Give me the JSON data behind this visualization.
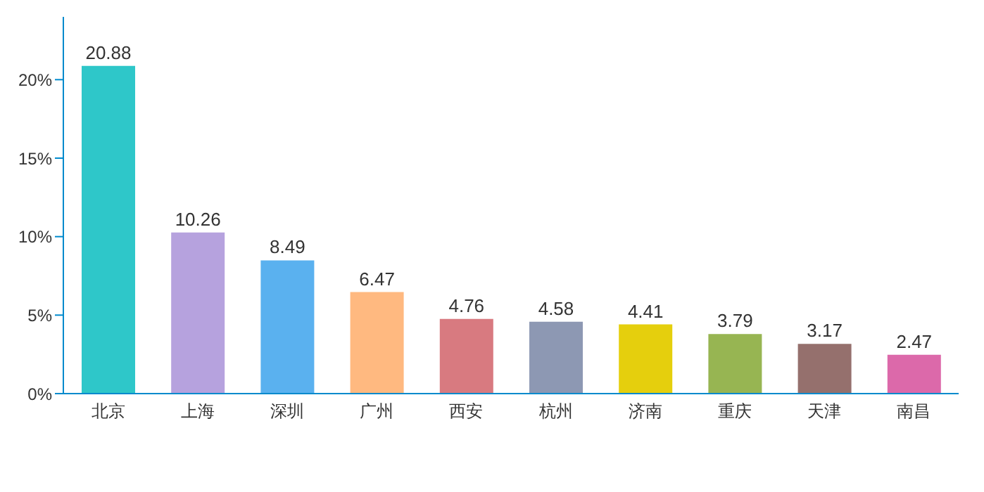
{
  "chart_data": {
    "type": "bar",
    "categories": [
      "北京",
      "上海",
      "深圳",
      "广州",
      "西安",
      "杭州",
      "济南",
      "重庆",
      "天津",
      "南昌"
    ],
    "values": [
      20.88,
      10.26,
      8.49,
      6.47,
      4.76,
      4.58,
      4.41,
      3.79,
      3.17,
      2.47
    ],
    "colors": [
      "#2ec7c9",
      "#b6a2de",
      "#5ab1ef",
      "#ffb980",
      "#d87a80",
      "#8d98b3",
      "#e5cf0d",
      "#97b552",
      "#95706d",
      "#dc69aa"
    ],
    "ylim": [
      0,
      24
    ],
    "yticks": [
      {
        "value": 0,
        "label": "0%"
      },
      {
        "value": 5,
        "label": "5%"
      },
      {
        "value": 10,
        "label": "10%"
      },
      {
        "value": 15,
        "label": "15%"
      },
      {
        "value": 20,
        "label": "20%"
      }
    ],
    "data_labels": true,
    "grid": false,
    "legend": false
  }
}
